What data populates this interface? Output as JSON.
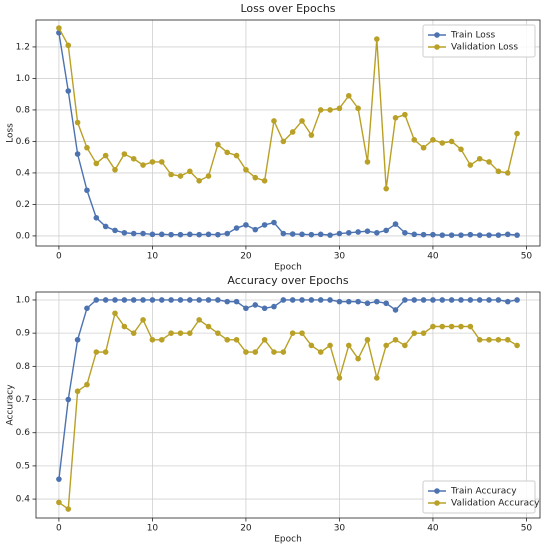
{
  "chart_data": [
    {
      "type": "line",
      "title": "Loss over Epochs",
      "xlabel": "Epoch",
      "ylabel": "Loss",
      "x": [
        0,
        1,
        2,
        3,
        4,
        5,
        6,
        7,
        8,
        9,
        10,
        11,
        12,
        13,
        14,
        15,
        16,
        17,
        18,
        19,
        20,
        21,
        22,
        23,
        24,
        25,
        26,
        27,
        28,
        29,
        30,
        31,
        32,
        33,
        34,
        35,
        36,
        37,
        38,
        39,
        40,
        41,
        42,
        43,
        44,
        45,
        46,
        47,
        48,
        49
      ],
      "series": [
        {
          "name": "Train Loss",
          "color": "#4c72b0",
          "values": [
            1.29,
            0.92,
            0.52,
            0.29,
            0.115,
            0.06,
            0.035,
            0.02,
            0.015,
            0.015,
            0.01,
            0.01,
            0.008,
            0.008,
            0.01,
            0.008,
            0.01,
            0.008,
            0.015,
            0.05,
            0.07,
            0.04,
            0.07,
            0.085,
            0.015,
            0.012,
            0.01,
            0.008,
            0.01,
            0.005,
            0.015,
            0.02,
            0.025,
            0.03,
            0.02,
            0.035,
            0.075,
            0.02,
            0.01,
            0.008,
            0.008,
            0.005,
            0.005,
            0.005,
            0.008,
            0.005,
            0.005,
            0.005,
            0.01,
            0.005
          ]
        },
        {
          "name": "Validation Loss",
          "color": "#b9a026",
          "values": [
            1.32,
            1.21,
            0.72,
            0.56,
            0.46,
            0.51,
            0.42,
            0.52,
            0.49,
            0.45,
            0.47,
            0.47,
            0.39,
            0.38,
            0.41,
            0.35,
            0.38,
            0.58,
            0.53,
            0.51,
            0.42,
            0.37,
            0.35,
            0.73,
            0.6,
            0.66,
            0.73,
            0.64,
            0.8,
            0.8,
            0.81,
            0.89,
            0.81,
            0.47,
            1.25,
            0.3,
            0.75,
            0.77,
            0.61,
            0.56,
            0.61,
            0.59,
            0.6,
            0.55,
            0.45,
            0.49,
            0.47,
            0.41,
            0.4,
            0.65
          ]
        }
      ],
      "xlim": [
        -2.45,
        51.45
      ],
      "xticks": [
        0,
        10,
        20,
        30,
        40,
        50
      ],
      "ylim": [
        -0.064,
        1.371
      ],
      "yticks": [
        {
          "value": 0,
          "label": "0.0"
        },
        0.2,
        0.4,
        0.6,
        0.8,
        {
          "value": 1,
          "label": "1.0"
        },
        1.2
      ],
      "grid": true,
      "legend": "upper right"
    },
    {
      "type": "line",
      "title": "Accuracy over Epochs",
      "xlabel": "Epoch",
      "ylabel": "Accuracy",
      "x": [
        0,
        1,
        2,
        3,
        4,
        5,
        6,
        7,
        8,
        9,
        10,
        11,
        12,
        13,
        14,
        15,
        16,
        17,
        18,
        19,
        20,
        21,
        22,
        23,
        24,
        25,
        26,
        27,
        28,
        29,
        30,
        31,
        32,
        33,
        34,
        35,
        36,
        37,
        38,
        39,
        40,
        41,
        42,
        43,
        44,
        45,
        46,
        47,
        48,
        49
      ],
      "series": [
        {
          "name": "Train Accuracy",
          "color": "#4c72b0",
          "values": [
            0.46,
            0.7,
            0.88,
            0.975,
            1.0,
            1.0,
            1.0,
            1.0,
            1.0,
            1.0,
            1.0,
            1.0,
            1.0,
            1.0,
            1.0,
            1.0,
            1.0,
            1.0,
            0.995,
            0.995,
            0.975,
            0.985,
            0.975,
            0.98,
            1.0,
            1.0,
            1.0,
            1.0,
            1.0,
            1.0,
            0.995,
            0.995,
            0.995,
            0.99,
            0.995,
            0.99,
            0.97,
            1.0,
            1.0,
            1.0,
            1.0,
            1.0,
            1.0,
            1.0,
            1.0,
            1.0,
            1.0,
            1.0,
            0.995,
            1.0
          ]
        },
        {
          "name": "Validation Accuracy",
          "color": "#b9a026",
          "values": [
            0.39,
            0.37,
            0.725,
            0.745,
            0.843,
            0.843,
            0.96,
            0.92,
            0.9,
            0.94,
            0.88,
            0.88,
            0.9,
            0.9,
            0.9,
            0.94,
            0.92,
            0.9,
            0.88,
            0.88,
            0.843,
            0.843,
            0.88,
            0.843,
            0.843,
            0.9,
            0.9,
            0.863,
            0.843,
            0.863,
            0.765,
            0.863,
            0.823,
            0.88,
            0.765,
            0.863,
            0.88,
            0.863,
            0.9,
            0.9,
            0.92,
            0.92,
            0.92,
            0.92,
            0.92,
            0.88,
            0.88,
            0.88,
            0.88,
            0.863
          ]
        }
      ],
      "xlim": [
        -2.45,
        51.45
      ],
      "xticks": [
        0,
        10,
        20,
        30,
        40,
        50
      ],
      "ylim": [
        0.343,
        1.024
      ],
      "yticks": [
        0.4,
        0.5,
        0.6,
        0.7,
        0.8,
        0.9,
        {
          "value": 1,
          "label": "1.0"
        }
      ],
      "grid": true,
      "legend": "lower right"
    }
  ]
}
